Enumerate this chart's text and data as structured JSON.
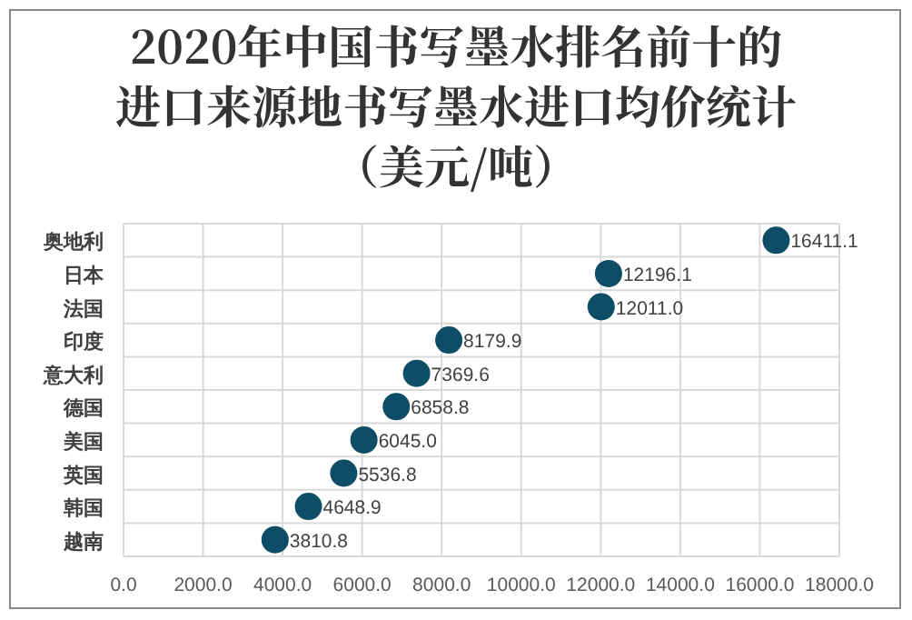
{
  "chart_data": {
    "type": "scatter",
    "orientation": "horizontal",
    "title": "2020年中国书写墨水排名前十的进口来源地书写墨水进口均价统计（美元/吨）",
    "categories": [
      "奥地利",
      "日本",
      "法国",
      "印度",
      "意大利",
      "德国",
      "美国",
      "英国",
      "韩国",
      "越南"
    ],
    "values": [
      16411.1,
      12196.1,
      12011.0,
      8179.9,
      7369.6,
      6858.8,
      6045.0,
      5536.8,
      4648.9,
      3810.8
    ],
    "value_labels": [
      "16411.1",
      "12196.1",
      "12011.0",
      "8179.9",
      "7369.6",
      "6858.8",
      "6045.0",
      "5536.8",
      "4648.9",
      "3810.8"
    ],
    "color": "#0e4d66",
    "marker": "circle",
    "grid": true,
    "xlim": [
      0,
      18000
    ],
    "xticks": [
      {
        "value": 0,
        "label": "0.0"
      },
      {
        "value": 2000,
        "label": "2000.0"
      },
      {
        "value": 4000,
        "label": "4000.0"
      },
      {
        "value": 6000,
        "label": "6000.0"
      },
      {
        "value": 8000,
        "label": "8000.0"
      },
      {
        "value": 10000,
        "label": "10000.0"
      },
      {
        "value": 12000,
        "label": "12000.0"
      },
      {
        "value": 14000,
        "label": "14000.0"
      },
      {
        "value": 16000,
        "label": "16000.0"
      },
      {
        "value": 18000,
        "label": "18000.0"
      }
    ]
  }
}
